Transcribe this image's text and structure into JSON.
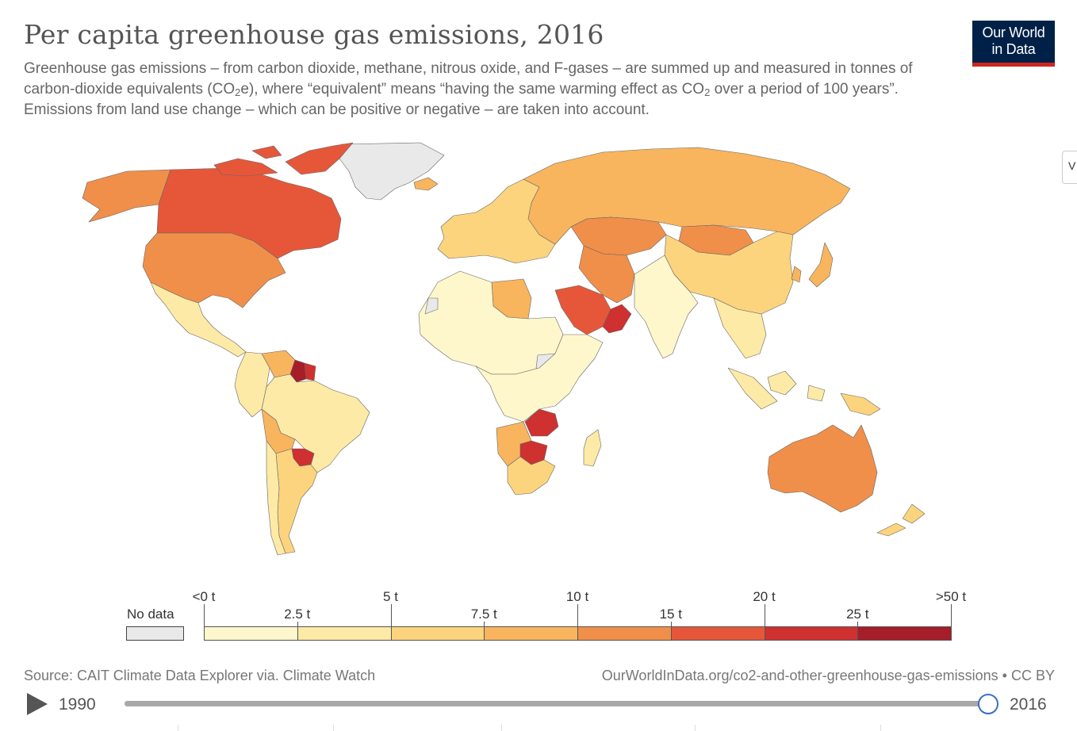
{
  "header": {
    "title": "Per capita greenhouse gas emissions, 2016",
    "subtitle_part1": "Greenhouse gas emissions – from carbon dioxide, methane, nitrous oxide, and F-gases – are summed up and measured in tonnes of carbon-dioxide equivalents (CO",
    "subtitle_sub1": "2",
    "subtitle_part2": "e), where “equivalent” means “having the same warming effect as CO",
    "subtitle_sub2": "2",
    "subtitle_part3": " over a period of 100 years”. Emissions from land use change – which can be positive or negative – are taken into account.",
    "logo_line1": "Our World",
    "logo_line2": "in Data",
    "side_tab_glyph": "V"
  },
  "legend": {
    "no_data_label": "No data",
    "no_data_color": "#e9e9e9",
    "upper_labels": [
      "<0 t",
      "5 t",
      "10 t",
      "20 t",
      ">50 t"
    ],
    "lower_labels": [
      "2.5 t",
      "7.5 t",
      "15 t",
      "25 t"
    ],
    "bins": [
      {
        "color": "#fff7cc"
      },
      {
        "color": "#fdeaa6"
      },
      {
        "color": "#fdd47e"
      },
      {
        "color": "#f8b55e"
      },
      {
        "color": "#f08f4a"
      },
      {
        "color": "#e6573a"
      },
      {
        "color": "#cf3030"
      },
      {
        "color": "#a51e2a"
      }
    ]
  },
  "map_data": {
    "year": 2016,
    "unit": "t CO2e per capita",
    "regions": [
      {
        "name": "Greenland",
        "color": "#e9e9e9"
      },
      {
        "name": "Alaska / North America (west)",
        "color": "#f08f4a"
      },
      {
        "name": "Canada",
        "color": "#e6573a"
      },
      {
        "name": "Canadian Arctic islands",
        "color": "#e6573a"
      },
      {
        "name": "United States",
        "color": "#f08f4a"
      },
      {
        "name": "Mexico & Central America",
        "color": "#fdeaa6"
      },
      {
        "name": "Colombia / Peru / Ecuador",
        "color": "#fdeaa6"
      },
      {
        "name": "Venezuela",
        "color": "#f8b55e"
      },
      {
        "name": "Guyana",
        "color": "#a51e2a"
      },
      {
        "name": "Suriname",
        "color": "#cf3030"
      },
      {
        "name": "Brazil",
        "color": "#fdeaa6"
      },
      {
        "name": "Bolivia",
        "color": "#f8b55e"
      },
      {
        "name": "Paraguay",
        "color": "#cf3030"
      },
      {
        "name": "Argentina",
        "color": "#fdd47e"
      },
      {
        "name": "Chile",
        "color": "#fdeaa6"
      },
      {
        "name": "Europe",
        "color": "#fdd47e"
      },
      {
        "name": "Iceland",
        "color": "#f8b55e"
      },
      {
        "name": "Russia",
        "color": "#f8b55e"
      },
      {
        "name": "Kazakhstan",
        "color": "#f08f4a"
      },
      {
        "name": "Mongolia",
        "color": "#f08f4a"
      },
      {
        "name": "China",
        "color": "#fdd47e"
      },
      {
        "name": "Japan / Korea",
        "color": "#f8b55e"
      },
      {
        "name": "Middle East (Iran)",
        "color": "#f08f4a"
      },
      {
        "name": "Saudi Arabia",
        "color": "#e6573a"
      },
      {
        "name": "Oman / UAE",
        "color": "#cf3030"
      },
      {
        "name": "India",
        "color": "#fff7cc"
      },
      {
        "name": "Southeast Asia",
        "color": "#fdeaa6"
      },
      {
        "name": "Indonesia",
        "color": "#fdeaa6"
      },
      {
        "name": "Papua New Guinea",
        "color": "#fdd47e"
      },
      {
        "name": "Australia",
        "color": "#f08f4a"
      },
      {
        "name": "New Zealand",
        "color": "#fdd47e"
      },
      {
        "name": "North Africa (Libya)",
        "color": "#f8b55e"
      },
      {
        "name": "Sahara & West Africa",
        "color": "#fff7cc"
      },
      {
        "name": "Western Sahara",
        "color": "#e9e9e9"
      },
      {
        "name": "Somalia region",
        "color": "#e9e9e9"
      },
      {
        "name": "East & Central Africa",
        "color": "#fff7cc"
      },
      {
        "name": "Zambia",
        "color": "#cf3030"
      },
      {
        "name": "Botswana",
        "color": "#cf3030"
      },
      {
        "name": "Namibia",
        "color": "#f8b55e"
      },
      {
        "name": "South Africa",
        "color": "#fdd47e"
      },
      {
        "name": "Madagascar",
        "color": "#fdeaa6"
      }
    ]
  },
  "footer": {
    "source": "Source: CAIT Climate Data Explorer via. Climate Watch",
    "url": "OurWorldInData.org/co2-and-other-greenhouse-gas-emissions • CC BY",
    "timeline_start": "1990",
    "timeline_end": "2016",
    "timeline_position": 1.0
  }
}
